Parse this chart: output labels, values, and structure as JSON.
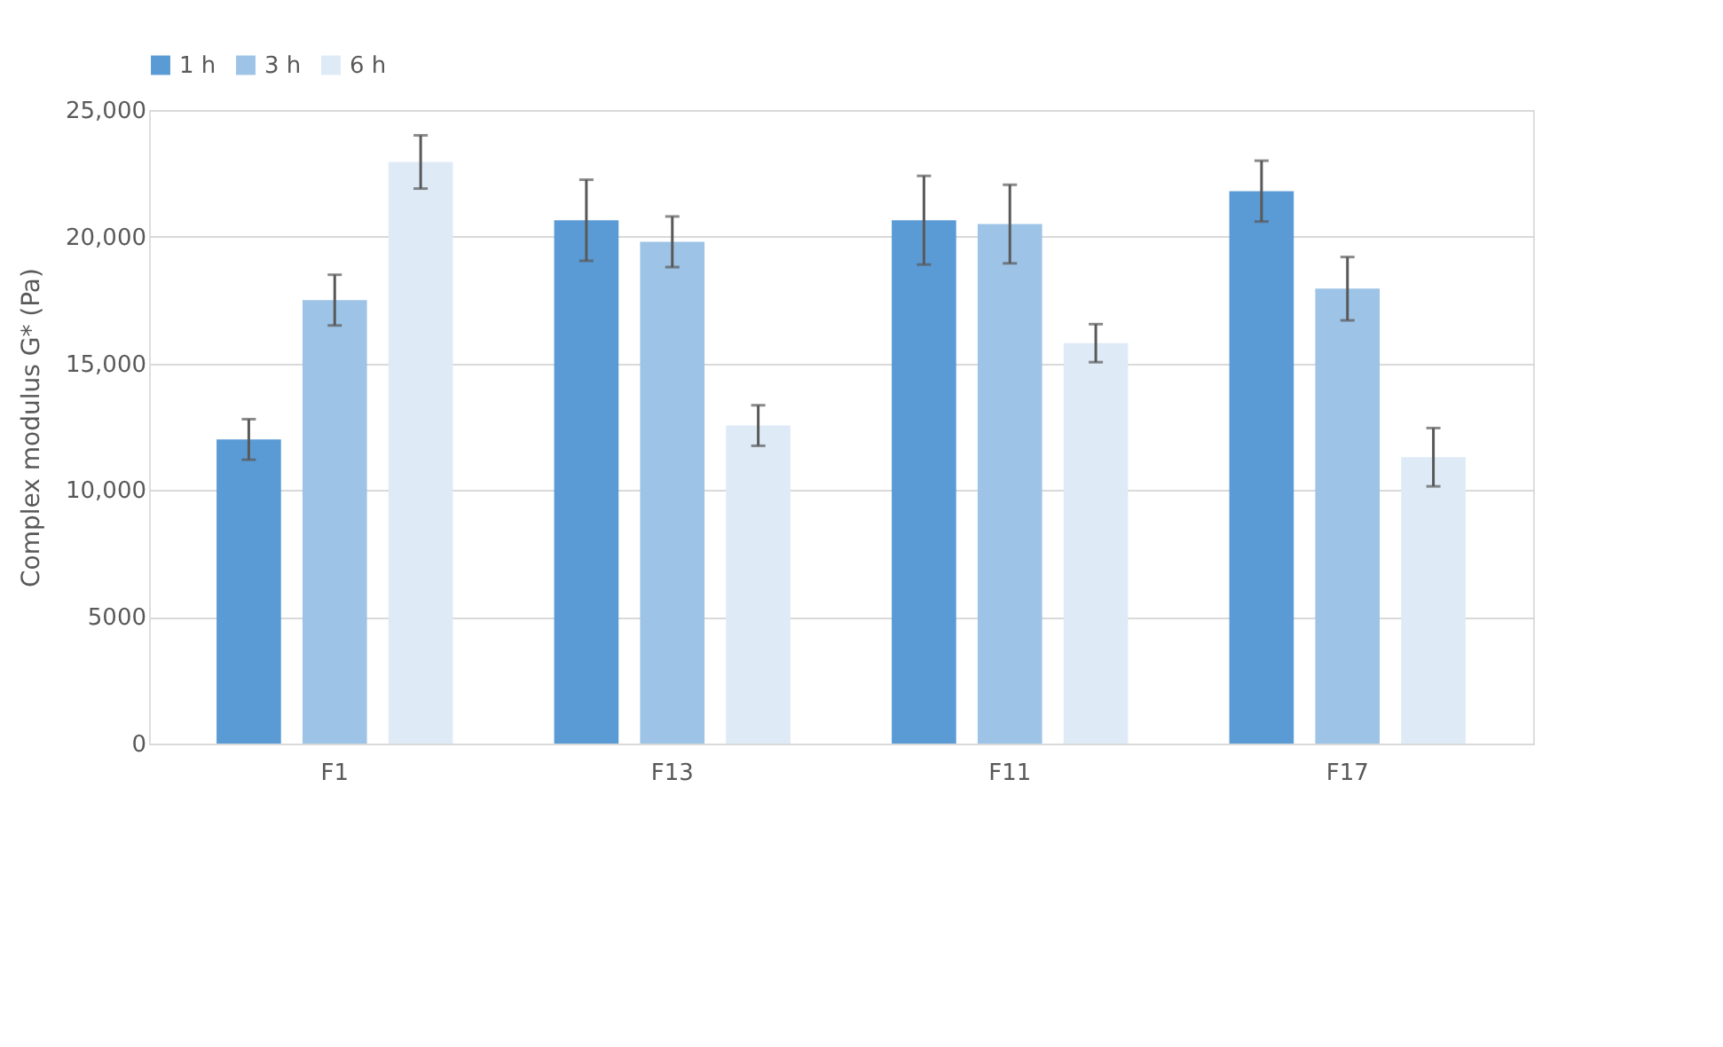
{
  "chart_data": {
    "type": "bar",
    "ylabel": "Complex modulus G* (Pa)",
    "categories": [
      "F1",
      "F13",
      "F11",
      "F17"
    ],
    "series": [
      {
        "name": "1 h",
        "color": "#5b9bd5",
        "values": [
          12000,
          20650,
          20650,
          21800
        ],
        "errors": [
          800,
          1600,
          1750,
          1200
        ]
      },
      {
        "name": "3 h",
        "color": "#9dc3e6",
        "values": [
          17500,
          19800,
          20500,
          17950
        ],
        "errors": [
          1000,
          1000,
          1550,
          1250
        ]
      },
      {
        "name": "6 h",
        "color": "#deebf7",
        "values": [
          22950,
          12550,
          15800,
          11300
        ],
        "errors": [
          1050,
          800,
          750,
          1150
        ]
      }
    ],
    "ylim": [
      0,
      25000
    ],
    "yticks": [
      0,
      5000,
      {
        "value": 10000,
        "label": "10,000"
      },
      {
        "value": 15000,
        "label": "15,000"
      },
      {
        "value": 20000,
        "label": "20,000"
      },
      {
        "value": 25000,
        "label": "25,000"
      }
    ],
    "grid": "y",
    "legend": "top"
  }
}
